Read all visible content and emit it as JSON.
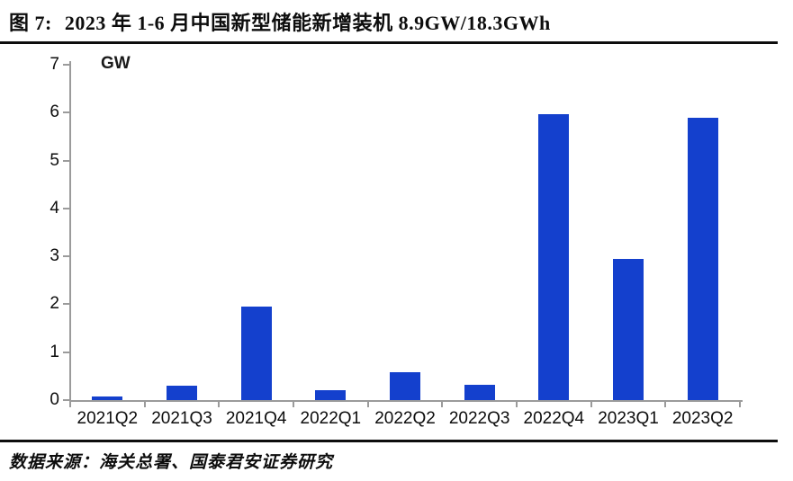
{
  "figure": {
    "label": "图 7:",
    "title": "2023 年 1-6 月中国新型储能新增装机 8.9GW/18.3GWh"
  },
  "chart_data": {
    "type": "bar",
    "title": "2023 年 1-6 月中国新型储能新增装机 8.9GW/18.3GWh",
    "unit_label": "GW",
    "categories": [
      "2021Q2",
      "2021Q3",
      "2021Q4",
      "2022Q1",
      "2022Q2",
      "2022Q3",
      "2022Q4",
      "2023Q1",
      "2023Q2"
    ],
    "values": [
      0.08,
      0.3,
      1.95,
      0.2,
      0.58,
      0.32,
      5.97,
      2.95,
      5.9
    ],
    "xlabel": "",
    "ylabel": "GW",
    "ylim": [
      0,
      7
    ],
    "yticks": [
      0,
      1,
      2,
      3,
      4,
      5,
      6,
      7
    ],
    "grid": false,
    "legend_position": "none",
    "bar_color": "#1440cd",
    "axis_color": "#9b9b9b"
  },
  "footer": {
    "source": "数据来源：海关总署、国泰君安证券研究"
  }
}
